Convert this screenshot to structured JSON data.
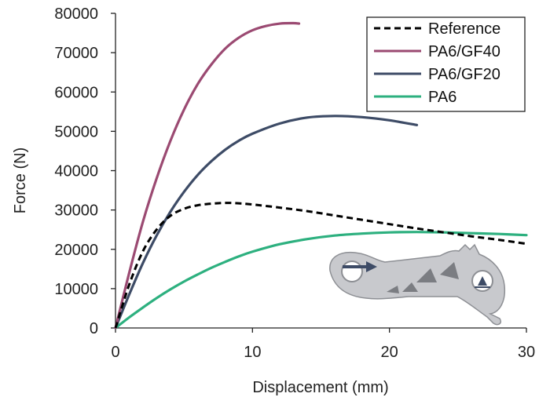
{
  "chart_data": {
    "type": "line",
    "xlabel": "Displacement (mm)",
    "ylabel": "Force (N)",
    "xlim": [
      0,
      30
    ],
    "ylim": [
      0,
      80000
    ],
    "xticks": [
      0,
      10,
      20,
      30
    ],
    "yticks": [
      0,
      10000,
      20000,
      30000,
      40000,
      50000,
      60000,
      70000,
      80000
    ],
    "grid": false,
    "legend_position": "top-right",
    "series": [
      {
        "name": "Reference",
        "color": "#000000",
        "style": "dashed",
        "x": [
          0,
          1,
          2,
          3,
          4,
          5,
          6,
          7,
          8,
          9,
          10,
          12,
          14,
          16,
          18,
          20,
          22,
          24,
          26,
          28,
          30
        ],
        "y": [
          0,
          11000,
          19500,
          25000,
          28500,
          30300,
          31200,
          31600,
          31800,
          31700,
          31400,
          30600,
          29700,
          28600,
          27500,
          26400,
          25300,
          24300,
          23300,
          22400,
          21400
        ]
      },
      {
        "name": "PA6/GF40",
        "color": "#9b4a72",
        "style": "solid",
        "x": [
          0,
          1,
          2,
          3,
          4,
          5,
          6,
          7,
          8,
          9,
          10,
          11,
          12,
          13,
          13.4
        ],
        "y": [
          0,
          14000,
          27000,
          38000,
          47500,
          55500,
          62000,
          67000,
          71000,
          73800,
          75700,
          76800,
          77400,
          77500,
          77400
        ]
      },
      {
        "name": "PA6/GF20",
        "color": "#3d4b66",
        "style": "solid",
        "x": [
          0,
          1,
          2,
          3,
          4,
          5,
          6,
          7,
          8,
          9,
          10,
          12,
          14,
          16,
          18,
          20,
          22
        ],
        "y": [
          0,
          8500,
          16500,
          23500,
          29500,
          34600,
          38900,
          42400,
          45300,
          47600,
          49400,
          52000,
          53500,
          53900,
          53600,
          52800,
          51600
        ]
      },
      {
        "name": "PA6",
        "color": "#2db07f",
        "style": "solid",
        "x": [
          0,
          1,
          2,
          3,
          4,
          5,
          6,
          7,
          8,
          9,
          10,
          12,
          14,
          16,
          18,
          20,
          22,
          24,
          26,
          28,
          30
        ],
        "y": [
          0,
          2700,
          5200,
          7600,
          9800,
          11800,
          13600,
          15300,
          16800,
          18200,
          19400,
          21300,
          22600,
          23500,
          24000,
          24300,
          24400,
          24300,
          24100,
          23900,
          23600
        ]
      }
    ]
  },
  "colors": {
    "axis": "#222222",
    "part_fill": "#c8c9cd",
    "part_shadow": "#8d8f94",
    "arrow": "#3d4b66"
  },
  "icons": {
    "inset": "bracket-part-illustration"
  }
}
